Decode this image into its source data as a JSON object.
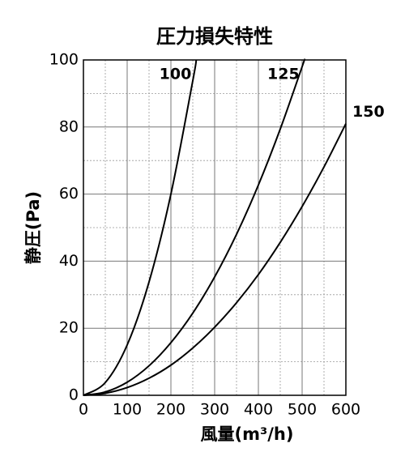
{
  "chart_data": {
    "type": "line",
    "title": "圧力損失特性",
    "x_label": "風量(m³/h)",
    "y_label": "静圧(Pa)",
    "xlim": [
      0,
      600
    ],
    "ylim": [
      0,
      100
    ],
    "xticks": [
      0,
      100,
      200,
      300,
      400,
      500,
      600
    ],
    "yticks": [
      0,
      20,
      40,
      60,
      80,
      100
    ],
    "x_minor_ticks": [
      50,
      150,
      250,
      350,
      450,
      550
    ],
    "y_minor_ticks": [
      10,
      30,
      50,
      70,
      90
    ],
    "grid": true,
    "series": [
      {
        "name": "100",
        "color": "#000000",
        "x": [
          0,
          50,
          100,
          150,
          200,
          250,
          258
        ],
        "values": [
          0,
          3.8,
          15,
          33.8,
          60,
          93.8,
          100
        ]
      },
      {
        "name": "125",
        "color": "#000000",
        "x": [
          0,
          50,
          100,
          150,
          200,
          250,
          300,
          350,
          400,
          450,
          500,
          505
        ],
        "values": [
          0,
          1,
          3.9,
          8.8,
          15.7,
          24.5,
          35.3,
          48,
          62.7,
          79.4,
          98,
          100
        ]
      },
      {
        "name": "150",
        "color": "#000000",
        "x": [
          0,
          50,
          100,
          150,
          200,
          250,
          300,
          350,
          400,
          450,
          500,
          550,
          600
        ],
        "values": [
          0,
          0.6,
          2.3,
          5.1,
          9,
          14.1,
          20.3,
          27.6,
          36,
          45.6,
          56.3,
          68.1,
          81
        ]
      }
    ]
  }
}
